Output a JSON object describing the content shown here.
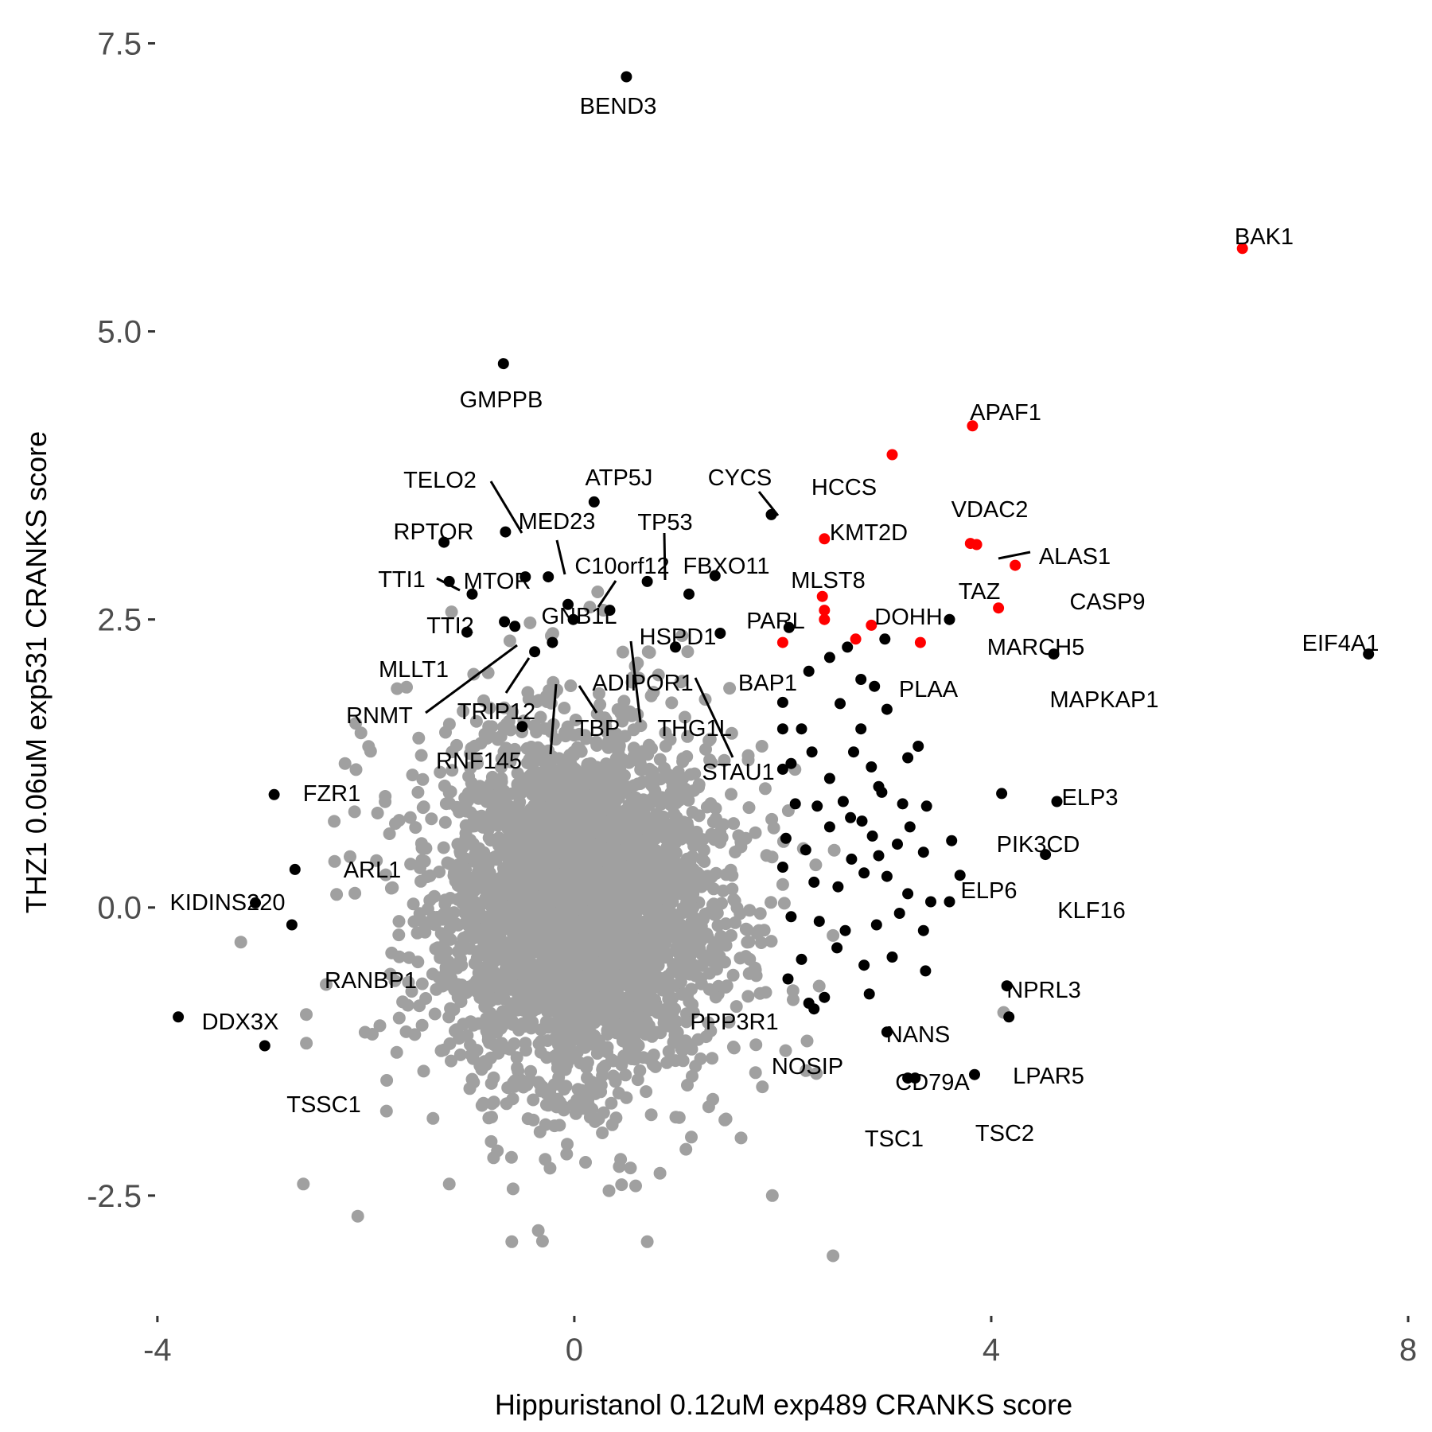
{
  "chart_data": {
    "type": "scatter",
    "xlabel": "Hippuristanol 0.12uM exp489 CRANKS score",
    "ylabel": "THZ1 0.06uM exp531 CRANKS score",
    "xlim": [
      -4.06,
      8.0
    ],
    "ylim": [
      -3.24,
      7.6
    ],
    "x_ticks": [
      -4,
      0,
      4,
      8
    ],
    "x_tick_labels": [
      "-4",
      "0",
      "4",
      "8"
    ],
    "y_ticks": [
      -2.5,
      0,
      2.5,
      5,
      7.5
    ],
    "y_tick_labels": [
      "-2.5",
      "0.0",
      "2.5",
      "5.0",
      "7.5"
    ],
    "grid": false,
    "legend": "none",
    "colors": {
      "background": "#d9d9d9",
      "highlight": "#000000",
      "apoptosis": "#ff0000",
      "axis_text": "#4d4d4d"
    },
    "background_cloud": {
      "description_color": "#a0a0a0",
      "center": [
        0.0,
        0.0
      ],
      "core_range_x": [
        -1.2,
        1.5
      ],
      "core_range_y": [
        -1.7,
        1.8
      ],
      "outliers": [
        [
          -3.2,
          -0.3
        ],
        [
          -2.6,
          -2.4
        ],
        [
          -2.2,
          1.25
        ],
        [
          -2.3,
          0.4
        ],
        [
          -1.8,
          -1.5
        ],
        [
          -1.7,
          1.9
        ],
        [
          -1.5,
          1.0
        ],
        [
          -0.6,
          -2.9
        ],
        [
          0.7,
          -2.9
        ],
        [
          1.9,
          -2.5
        ],
        [
          2.1,
          -0.8
        ],
        [
          1.8,
          1.4
        ],
        [
          1.6,
          -2.0
        ],
        [
          -1.2,
          -2.4
        ],
        [
          2.0,
          0.2
        ]
      ]
    },
    "series": [
      {
        "name": "labeled-black",
        "color": "#000000",
        "points": [
          {
            "label": "BEND3",
            "x": 0.5,
            "y": 7.21
          },
          {
            "label": "GMPPB",
            "x": -0.68,
            "y": 4.72
          },
          {
            "label": "TELO2",
            "x": -0.66,
            "y": 3.26
          },
          {
            "label": "ATP5J",
            "x": 0.19,
            "y": 3.52
          },
          {
            "label": "CYCS",
            "x": 1.89,
            "y": 3.41
          },
          {
            "label": "MED23",
            "x": -0.25,
            "y": 2.87
          },
          {
            "label": "TP53",
            "x": 0.7,
            "y": 2.83
          },
          {
            "label": "RPTOR",
            "x": -1.25,
            "y": 3.17
          },
          {
            "label": "TTI1",
            "x": -1.2,
            "y": 2.83
          },
          {
            "label": "MTOR",
            "x": -0.47,
            "y": 2.87
          },
          {
            "label": "C10orf12",
            "x": -0.06,
            "y": 2.63
          },
          {
            "label": "FBXO11",
            "x": 1.35,
            "y": 2.88
          },
          {
            "label": "TTI2",
            "x": -0.98,
            "y": 2.72
          },
          {
            "label": "GNB1L",
            "x": -0.01,
            "y": 2.5
          },
          {
            "label": "MLLT1",
            "x": -1.03,
            "y": 2.39
          },
          {
            "label": "RNMT",
            "x": -0.67,
            "y": 2.48
          },
          {
            "label": "HSPD1",
            "x": 0.34,
            "y": 2.58
          },
          {
            "label": "PARL",
            "x": 2.06,
            "y": 2.43
          },
          {
            "label": "ADIPOR1",
            "x": -0.21,
            "y": 2.3
          },
          {
            "label": "BAP1",
            "x": 0.97,
            "y": 2.26
          },
          {
            "label": "TRIP12",
            "x": -0.57,
            "y": 2.44
          },
          {
            "label": "TBP",
            "x": -0.38,
            "y": 2.22
          },
          {
            "label": "THG1L",
            "x": 1.1,
            "y": 2.72
          },
          {
            "label": "STAU1",
            "x": 1.4,
            "y": 2.38
          },
          {
            "label": "RNF145",
            "x": -0.5,
            "y": 1.57
          },
          {
            "label": "FZR1",
            "x": -2.88,
            "y": 0.98
          },
          {
            "label": "ARL1",
            "x": -2.68,
            "y": 0.33
          },
          {
            "label": "KIDINS220",
            "x": -3.06,
            "y": 0.04
          },
          {
            "label": "RANBP1",
            "x": -2.71,
            "y": -0.15
          },
          {
            "label": "DDX3X",
            "x": -3.8,
            "y": -0.95
          },
          {
            "label": "TSSC1",
            "x": -2.97,
            "y": -1.2
          },
          {
            "label": "MARCH5",
            "x": 3.6,
            "y": 2.5
          },
          {
            "label": "MAPKAP1",
            "x": 4.6,
            "y": 2.2
          },
          {
            "label": "EIF4A1",
            "x": 7.62,
            "y": 2.2
          },
          {
            "label": "PLAA",
            "x": 2.98,
            "y": 2.33
          },
          {
            "label": "ELP3",
            "x": 4.63,
            "y": 0.92
          },
          {
            "label": "PIK3CD",
            "x": 4.1,
            "y": 0.99
          },
          {
            "label": "ELP6",
            "x": 3.7,
            "y": 0.28
          },
          {
            "label": "KLF16",
            "x": 4.52,
            "y": 0.46
          },
          {
            "label": "NPRL3",
            "x": 4.15,
            "y": -0.68
          },
          {
            "label": "LPAR5",
            "x": 4.17,
            "y": -0.95
          },
          {
            "label": "PPP3R1",
            "x": 2.25,
            "y": -0.83
          },
          {
            "label": "NOSIP",
            "x": 2.3,
            "y": -0.88
          },
          {
            "label": "NANS",
            "x": 3.0,
            "y": -1.08
          },
          {
            "label": "CD79A",
            "x": 3.2,
            "y": -1.48
          },
          {
            "label": "TSC1",
            "x": 3.27,
            "y": -1.48
          },
          {
            "label": "TSC2",
            "x": 3.84,
            "y": -1.45
          }
        ]
      },
      {
        "name": "labeled-red",
        "color": "#ff0000",
        "points": [
          {
            "label": "BAK1",
            "x": 6.41,
            "y": 5.72
          },
          {
            "label": "APAF1",
            "x": 3.82,
            "y": 4.18
          },
          {
            "label": "HCCS",
            "x": 3.05,
            "y": 3.93
          },
          {
            "label": "KMT2D",
            "x": 2.4,
            "y": 3.2
          },
          {
            "label": "VDAC2",
            "x": 3.86,
            "y": 3.15
          },
          {
            "label": "ALAS1",
            "x": 3.8,
            "y": 3.16
          },
          {
            "label": "CASP9",
            "x": 4.23,
            "y": 2.97
          },
          {
            "label": "MLST8",
            "x": 2.38,
            "y": 2.7
          },
          {
            "label": "TAZ",
            "x": 4.07,
            "y": 2.6
          },
          {
            "label": "DOHH",
            "x": 2.85,
            "y": 2.45
          },
          {
            "label": "extra1",
            "x": 2.4,
            "y": 2.5
          },
          {
            "label": "extra2",
            "x": 2.4,
            "y": 2.58
          },
          {
            "label": "extra3",
            "x": 2.7,
            "y": 2.33
          },
          {
            "label": "extra4",
            "x": 3.32,
            "y": 2.3
          },
          {
            "label": "extra5",
            "x": 2.0,
            "y": 2.3
          }
        ]
      },
      {
        "name": "unlabeled-black",
        "color": "#000000",
        "points": [
          [
            2.25,
            2.05
          ],
          [
            2.45,
            2.17
          ],
          [
            2.62,
            2.26
          ],
          [
            2.75,
            1.98
          ],
          [
            2.88,
            1.92
          ],
          [
            2.0,
            1.78
          ],
          [
            2.18,
            1.55
          ],
          [
            2.55,
            1.77
          ],
          [
            2.75,
            1.55
          ],
          [
            3.0,
            1.72
          ],
          [
            3.3,
            1.4
          ],
          [
            2.0,
            1.55
          ],
          [
            2.08,
            1.25
          ],
          [
            2.28,
            1.35
          ],
          [
            2.45,
            1.12
          ],
          [
            2.68,
            1.35
          ],
          [
            2.85,
            1.22
          ],
          [
            2.92,
            1.05
          ],
          [
            3.2,
            1.3
          ],
          [
            2.0,
            1.2
          ],
          [
            2.12,
            0.9
          ],
          [
            2.33,
            0.88
          ],
          [
            2.58,
            0.92
          ],
          [
            2.76,
            0.75
          ],
          [
            2.95,
            1.0
          ],
          [
            3.15,
            0.9
          ],
          [
            3.38,
            0.88
          ],
          [
            2.03,
            0.6
          ],
          [
            2.22,
            0.5
          ],
          [
            2.45,
            0.7
          ],
          [
            2.66,
            0.42
          ],
          [
            2.86,
            0.62
          ],
          [
            3.1,
            0.55
          ],
          [
            3.35,
            0.48
          ],
          [
            3.62,
            0.58
          ],
          [
            2.0,
            0.35
          ],
          [
            2.3,
            0.22
          ],
          [
            2.53,
            0.18
          ],
          [
            2.78,
            0.3
          ],
          [
            3.0,
            0.27
          ],
          [
            3.2,
            0.12
          ],
          [
            3.42,
            0.05
          ],
          [
            3.6,
            0.05
          ],
          [
            2.08,
            -0.08
          ],
          [
            2.35,
            -0.12
          ],
          [
            2.6,
            -0.2
          ],
          [
            2.9,
            -0.15
          ],
          [
            3.12,
            -0.05
          ],
          [
            3.35,
            -0.2
          ],
          [
            2.18,
            -0.45
          ],
          [
            2.52,
            -0.35
          ],
          [
            2.78,
            -0.5
          ],
          [
            3.05,
            -0.43
          ],
          [
            3.37,
            -0.55
          ],
          [
            2.05,
            -0.62
          ],
          [
            2.4,
            -0.78
          ],
          [
            2.83,
            -0.75
          ],
          [
            2.65,
            0.78
          ],
          [
            2.92,
            0.45
          ],
          [
            3.22,
            0.7
          ]
        ]
      }
    ]
  }
}
